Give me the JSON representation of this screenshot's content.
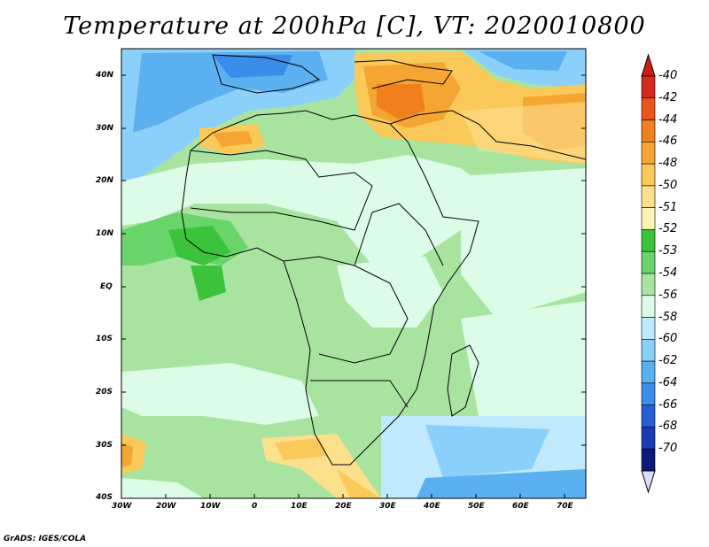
{
  "title": "Temperature at 200hPa [C], VT: 2020010800",
  "credit": "GrADS: IGES/COLA",
  "map": {
    "lat_labels": [
      "40N",
      "30N",
      "20N",
      "10N",
      "EQ",
      "10S",
      "20S",
      "30S",
      "40S"
    ],
    "lon_labels": [
      "30W",
      "20W",
      "10W",
      "0",
      "10E",
      "20E",
      "30E",
      "40E",
      "50E",
      "60E",
      "70E"
    ]
  },
  "colorbar": {
    "labels": [
      "-40",
      "-42",
      "-44",
      "-46",
      "-48",
      "-50",
      "-51",
      "-52",
      "-53",
      "-54",
      "-56",
      "-58",
      "-60",
      "-62",
      "-64",
      "-66",
      "-68",
      "-70"
    ],
    "colors": [
      "#d62a1e",
      "#e8561e",
      "#f0801e",
      "#f5a632",
      "#fbc85a",
      "#fde08c",
      "#f7f5b0",
      "#3bc43b",
      "#68d46a",
      "#a8e4a0",
      "#dcfce8",
      "#bfe9fc",
      "#8bd0fa",
      "#5bb0f0",
      "#3c8cea",
      "#2560d8",
      "#1a3cb4",
      "#0c1a78"
    ]
  },
  "legend_colors": {
    "ocean_base": "#a8e4a0",
    "land_base": "#a8e4a0"
  }
}
